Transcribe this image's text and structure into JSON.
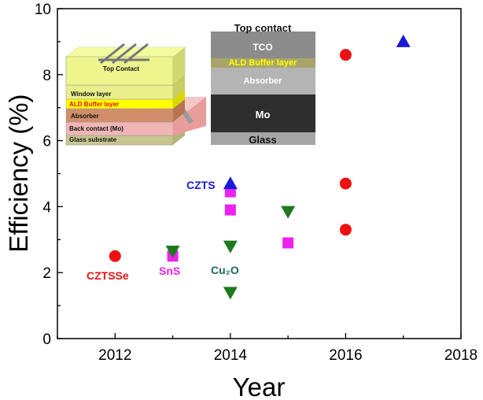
{
  "chart_data": {
    "type": "scatter",
    "xlabel": "Year",
    "ylabel": "Efficiency (%)",
    "xlim": [
      2011,
      2018
    ],
    "ylim": [
      0,
      10
    ],
    "x_ticks": [
      "2012",
      "2014",
      "2016",
      "2018"
    ],
    "y_ticks": [
      "0",
      "2",
      "4",
      "6",
      "8",
      "10"
    ],
    "grid": false,
    "series": [
      {
        "name": "CZTSSe",
        "marker": "circle",
        "color": "#ee1111",
        "points": [
          {
            "x": 2012,
            "y": 2.5
          },
          {
            "x": 2016,
            "y": 8.6
          },
          {
            "x": 2016,
            "y": 4.7
          },
          {
            "x": 2016,
            "y": 3.3
          }
        ]
      },
      {
        "name": "SnS",
        "marker": "square",
        "color": "#ee22ee",
        "points": [
          {
            "x": 2013,
            "y": 2.5
          },
          {
            "x": 2014,
            "y": 4.45
          },
          {
            "x": 2014,
            "y": 3.9
          },
          {
            "x": 2015,
            "y": 2.9
          }
        ]
      },
      {
        "name": "Cu₂O",
        "marker": "triangle-down",
        "color": "#1d7a1d",
        "points": [
          {
            "x": 2013,
            "y": 2.65
          },
          {
            "x": 2014,
            "y": 2.8
          },
          {
            "x": 2014,
            "y": 1.4
          },
          {
            "x": 2015,
            "y": 3.85
          }
        ]
      },
      {
        "name": "CZTS",
        "marker": "triangle-up",
        "color": "#1a1adc",
        "points": [
          {
            "x": 2014,
            "y": 4.7
          },
          {
            "x": 2017,
            "y": 9.0
          }
        ]
      }
    ],
    "annotations": [
      {
        "text": "CZTSSe",
        "color": "#ee1111"
      },
      {
        "text": "SnS",
        "color": "#ee22ee"
      },
      {
        "text": "Cu₂O",
        "color": "#1d6a5a"
      },
      {
        "text": "CZTS",
        "color": "#1a1adc"
      }
    ]
  },
  "insets": {
    "device_schematic": {
      "layers": [
        "Top Contact",
        "Window layer",
        "ALD Buffer  layer",
        "Absorber",
        "Back contact (Mo)",
        "Glass substrate"
      ]
    },
    "sem_cross_section": {
      "labels": [
        "Top contact",
        "TCO",
        "ALD Buffer layer",
        "Absorber",
        "Mo",
        "Glass"
      ]
    }
  }
}
